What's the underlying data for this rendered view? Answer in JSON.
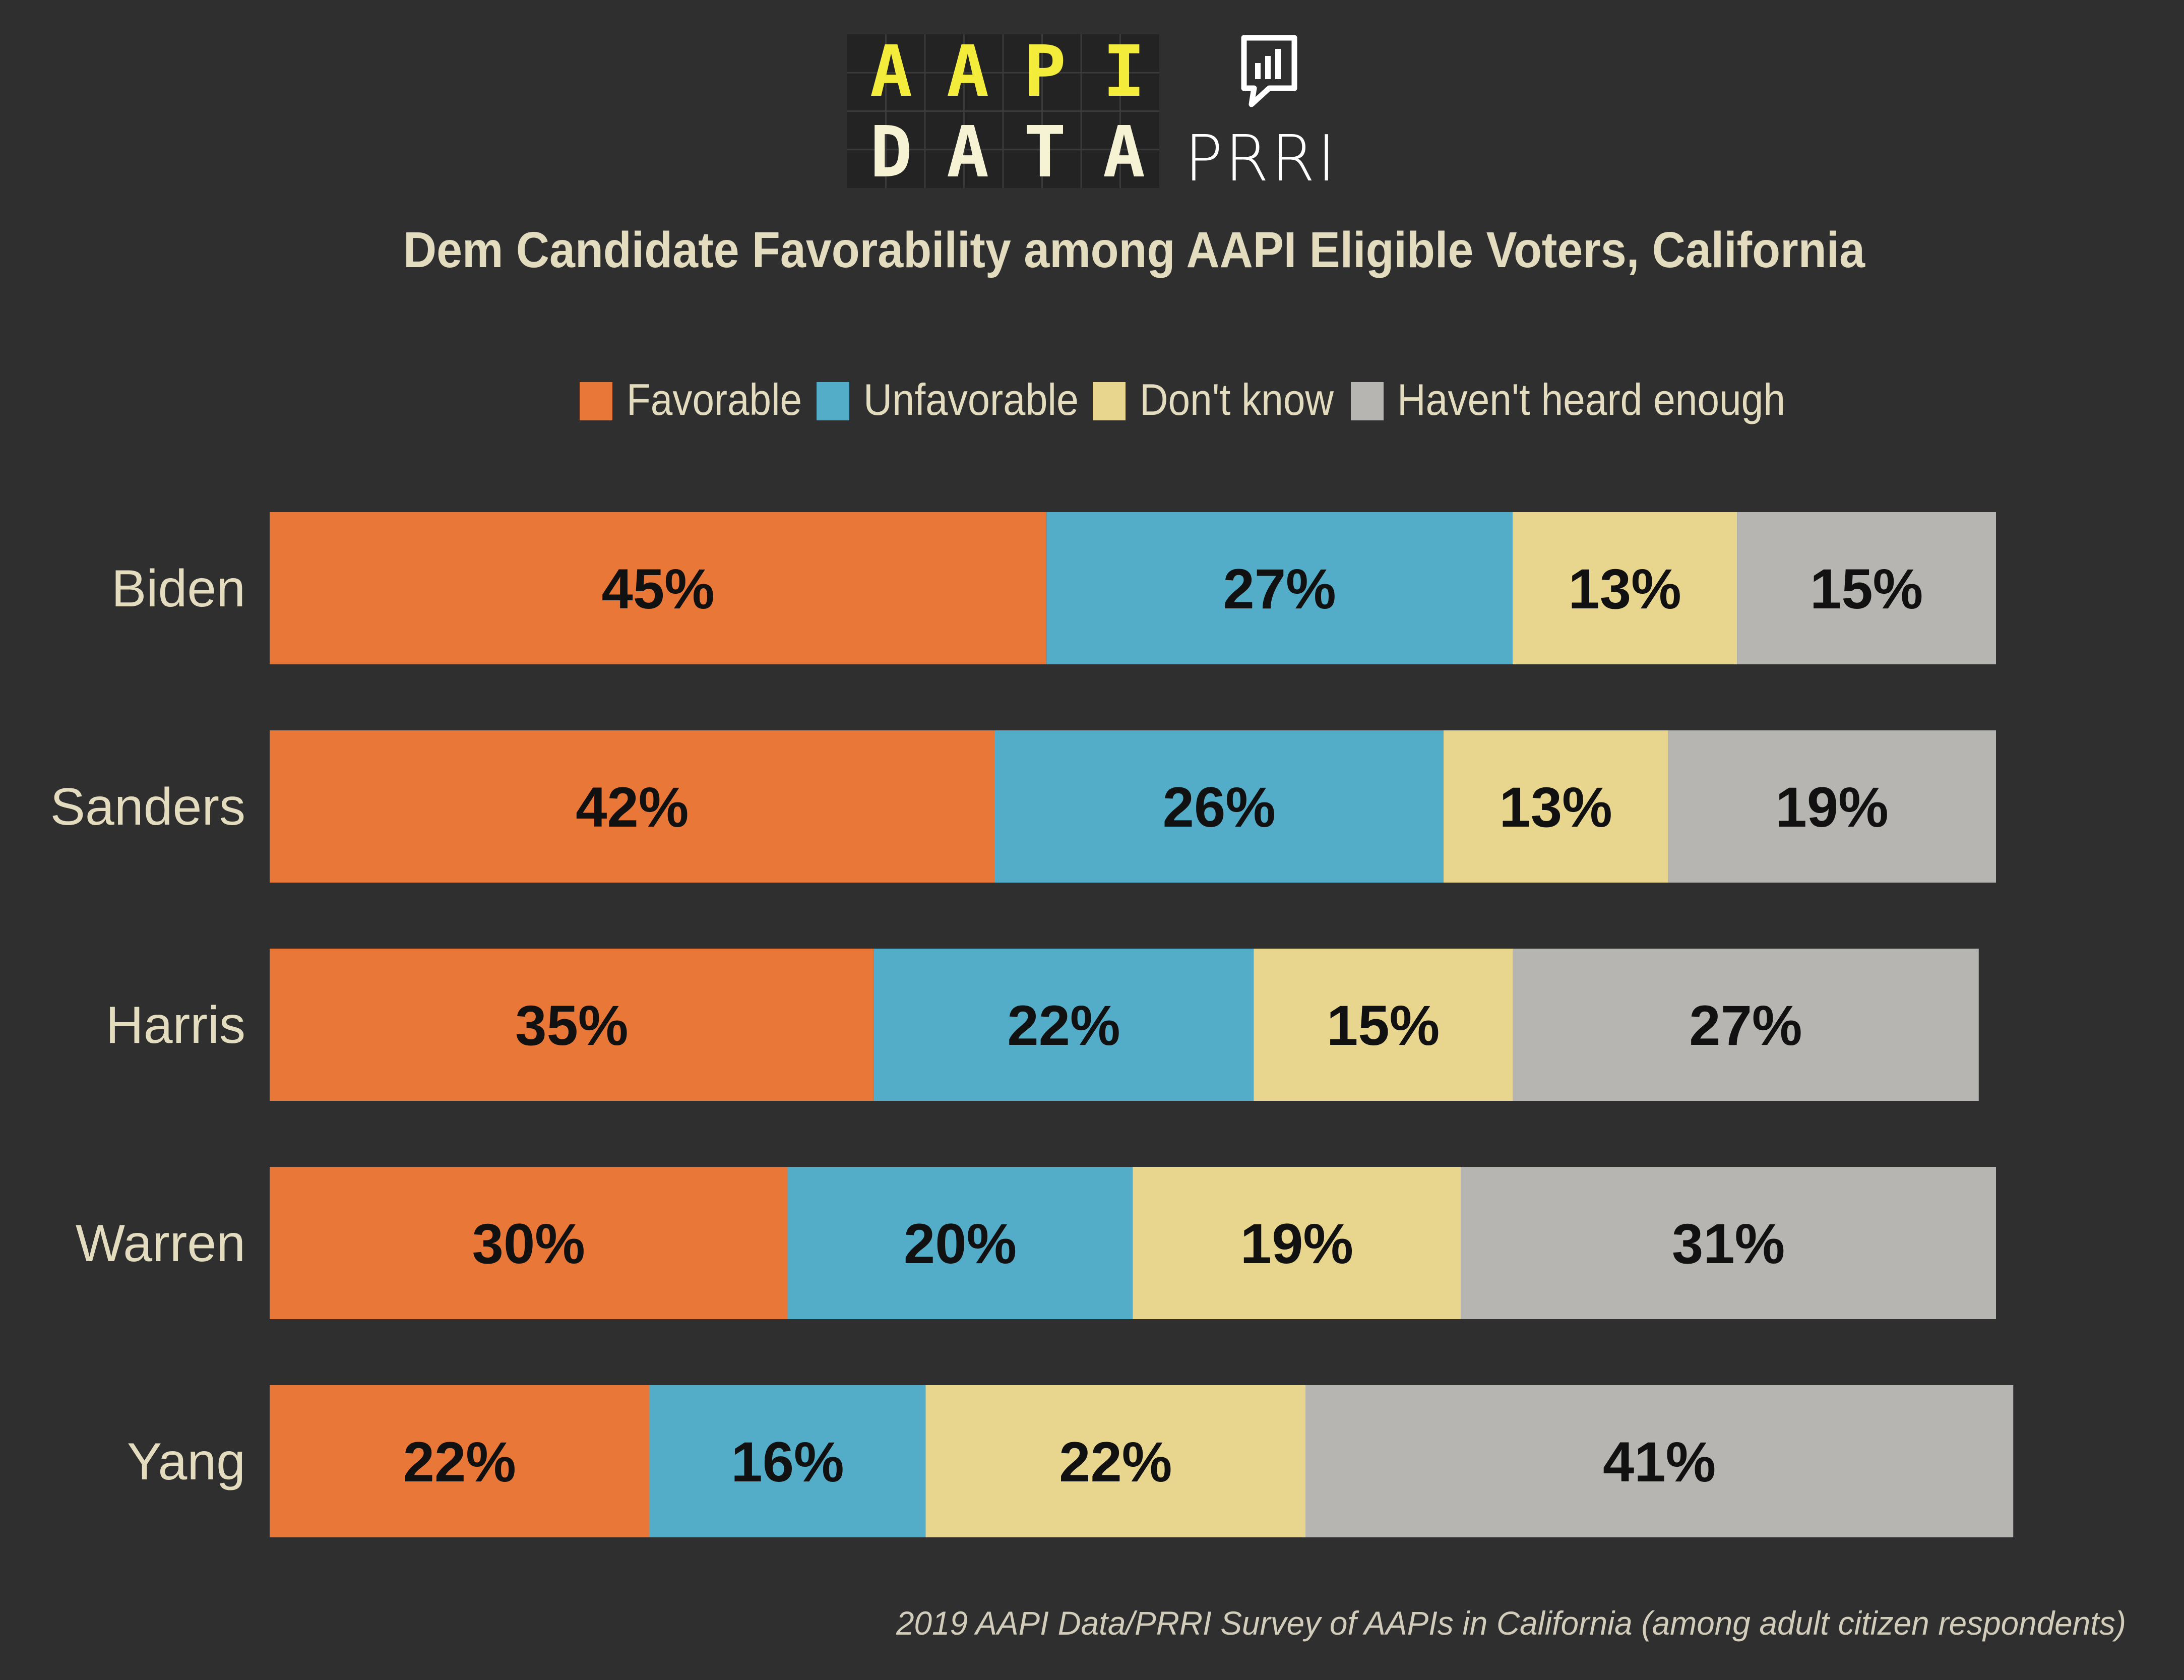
{
  "logos": {
    "aapi_data": {
      "row1": [
        "A",
        "A",
        "P",
        "I"
      ],
      "row2": [
        "D",
        "A",
        "T",
        "A"
      ],
      "text_color_row1": "#f4ec3a",
      "text_color_row2": "#f6f2d4",
      "bg_color": "#232323"
    },
    "prri": {
      "wordmark": "PRRI",
      "icon": "speech-bubble-bar-chart-icon",
      "color": "#ffffff"
    }
  },
  "chart_data": {
    "type": "bar",
    "orientation": "horizontal",
    "stacked": true,
    "title": "Dem Candidate Favorability among AAPI Eligible Voters, California",
    "xlabel": "",
    "ylabel": "",
    "xlim": [
      0,
      100
    ],
    "grid": false,
    "legend_position": "top",
    "categories": [
      "Biden",
      "Sanders",
      "Harris",
      "Warren",
      "Yang"
    ],
    "series": [
      {
        "name": "Favorable",
        "color": "#e87738",
        "values": [
          45,
          42,
          35,
          30,
          22
        ],
        "labels": [
          "45%",
          "42%",
          "35%",
          "30%",
          "22%"
        ]
      },
      {
        "name": "Unfavorable",
        "color": "#53adc8",
        "values": [
          27,
          26,
          22,
          20,
          16
        ],
        "labels": [
          "27%",
          "26%",
          "22%",
          "20%",
          "16%"
        ]
      },
      {
        "name": "Don't know",
        "color": "#e8d68e",
        "values": [
          13,
          13,
          15,
          19,
          22
        ],
        "labels": [
          "13%",
          "13%",
          "15%",
          "19%",
          "22%"
        ]
      },
      {
        "name": "Haven't heard enough",
        "color": "#b6b5b2",
        "values": [
          15,
          19,
          27,
          31,
          41
        ],
        "labels": [
          "15%",
          "19%",
          "27%",
          "31%",
          "41%"
        ]
      }
    ],
    "source_note": "2019 AAPI Data/PRRI Survey of AAPIs in California (among adult citizen respondents)"
  },
  "colors": {
    "background": "#2f2f2f",
    "title_text": "#e4dcbf",
    "category_text": "#e4dcbf",
    "legend_text": "#e4dcbf",
    "source_text": "#d2cdbb",
    "value_label": "#111111"
  }
}
